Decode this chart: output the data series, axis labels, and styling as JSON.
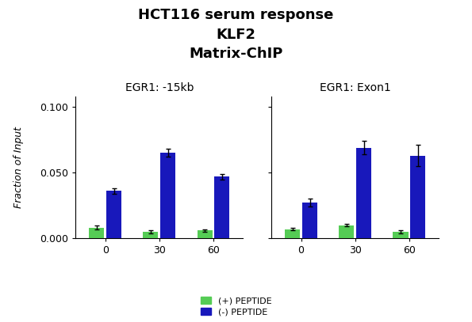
{
  "title_line1": "HCT116 serum response",
  "title_line2": "KLF2",
  "title_line3": "Matrix-ChIP",
  "subplot_titles": [
    "EGR1: -15kb",
    "EGR1: Exon1"
  ],
  "x_labels": [
    "0",
    "30",
    "60"
  ],
  "ylabel": "Fraction of Input",
  "ylim": [
    0,
    0.108
  ],
  "yticks": [
    0.0,
    0.05,
    0.1
  ],
  "ytick_labels": [
    "0.000",
    "0.050",
    "0.100"
  ],
  "bar_width": 0.28,
  "group_centers": [
    0,
    1,
    2
  ],
  "legend_labels": [
    "(+) PEPTIDE",
    "(-) PEPTIDE"
  ],
  "colors": {
    "plus_peptide": "#55cc55",
    "minus_peptide": "#1818bb"
  },
  "panel1": {
    "plus_peptide_values": [
      0.008,
      0.005,
      0.006
    ],
    "minus_peptide_values": [
      0.036,
      0.065,
      0.047
    ],
    "plus_peptide_errors": [
      0.0015,
      0.001,
      0.001
    ],
    "minus_peptide_errors": [
      0.002,
      0.003,
      0.002
    ]
  },
  "panel2": {
    "plus_peptide_values": [
      0.007,
      0.01,
      0.005
    ],
    "minus_peptide_values": [
      0.027,
      0.069,
      0.063
    ],
    "plus_peptide_errors": [
      0.001,
      0.001,
      0.001
    ],
    "minus_peptide_errors": [
      0.003,
      0.005,
      0.008
    ]
  },
  "background_color": "#ffffff",
  "title_fontsize": 13,
  "subplot_title_fontsize": 10,
  "axis_label_fontsize": 9,
  "tick_fontsize": 9,
  "legend_fontsize": 8
}
